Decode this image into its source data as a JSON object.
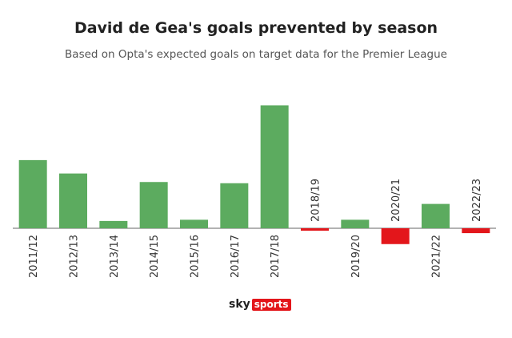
{
  "header": {
    "title": "David de Gea's goals prevented by season",
    "subtitle": "Based on Opta's expected goals on target data for the Premier League"
  },
  "logo": {
    "sky": "sky",
    "sports": "sports"
  },
  "colors": {
    "positive": "#5cab5f",
    "negative": "#e3161b",
    "baseline": "#666666"
  },
  "chart_data": {
    "type": "bar",
    "title": "David de Gea's goals prevented by season",
    "subtitle": "Based on Opta's expected goals on target data for the Premier League",
    "xlabel": "",
    "ylabel": "",
    "categories": [
      "2011/12",
      "2012/13",
      "2013/14",
      "2014/15",
      "2015/16",
      "2016/17",
      "2017/18",
      "2018/19",
      "2019/20",
      "2020/21",
      "2021/22",
      "2022/23"
    ],
    "values": [
      5.6,
      4.5,
      0.6,
      3.8,
      0.7,
      3.7,
      10.1,
      -0.2,
      0.7,
      -1.3,
      2.0,
      -0.4
    ],
    "ylim": [
      -2,
      11
    ],
    "grid": false,
    "axes_visible": false
  }
}
